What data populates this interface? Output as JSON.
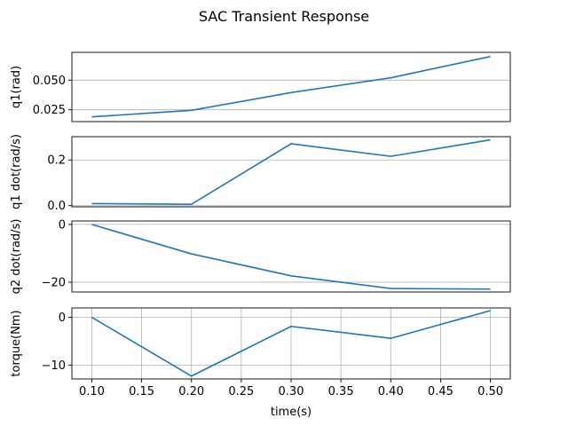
{
  "figure_title": "SAC Transient Response",
  "chart_data": [
    {
      "type": "line",
      "ylabel": "q1(rad)",
      "xlabel": "",
      "x": [
        0.1,
        0.2,
        0.3,
        0.4,
        0.5
      ],
      "series": [
        {
          "values": [
            0.019,
            0.0245,
            0.0395,
            0.052,
            0.07
          ]
        }
      ],
      "ylim": [
        0.015,
        0.0735
      ],
      "yticks": [
        0.025,
        0.05
      ],
      "ytick_labels": [
        "0.025",
        "0.050"
      ],
      "grid": "horizontal",
      "color": "#1f77b4"
    },
    {
      "type": "line",
      "ylabel": "q1 dot(rad/s)",
      "xlabel": "",
      "x": [
        0.1,
        0.2,
        0.3,
        0.4,
        0.5
      ],
      "series": [
        {
          "values": [
            0.009,
            0.006,
            0.271,
            0.216,
            0.288
          ]
        }
      ],
      "ylim": [
        -0.005,
        0.302
      ],
      "yticks": [
        0.0,
        0.2
      ],
      "ytick_labels": [
        "0.0",
        "0.2"
      ],
      "grid": "horizontal",
      "color": "#1f77b4"
    },
    {
      "type": "line",
      "ylabel": "q2 dot(rad/s)",
      "xlabel": "",
      "x": [
        0.1,
        0.2,
        0.3,
        0.4,
        0.5
      ],
      "series": [
        {
          "values": [
            0.0,
            -10.2,
            -17.8,
            -22.2,
            -22.4
          ]
        }
      ],
      "ylim": [
        -23.4,
        1.2
      ],
      "yticks": [
        -20,
        0
      ],
      "ytick_labels": [
        "−20",
        "0"
      ],
      "grid": "horizontal",
      "color": "#1f77b4"
    },
    {
      "type": "line",
      "ylabel": "torque(Nm)",
      "xlabel": "time(s)",
      "x": [
        0.1,
        0.2,
        0.3,
        0.4,
        0.5
      ],
      "series": [
        {
          "values": [
            0.0,
            -12.3,
            -1.9,
            -4.4,
            1.4
          ]
        }
      ],
      "ylim": [
        -12.9,
        1.95
      ],
      "yticks": [
        -10,
        0
      ],
      "ytick_labels": [
        "−10",
        "0"
      ],
      "xticks": [
        0.1,
        0.15,
        0.2,
        0.25,
        0.3,
        0.35,
        0.4,
        0.45,
        0.5
      ],
      "xtick_labels": [
        "0.10",
        "0.15",
        "0.20",
        "0.25",
        "0.30",
        "0.35",
        "0.40",
        "0.45",
        "0.50"
      ],
      "xlim": [
        0.08,
        0.52
      ],
      "grid": "both",
      "color": "#1f77b4"
    }
  ]
}
